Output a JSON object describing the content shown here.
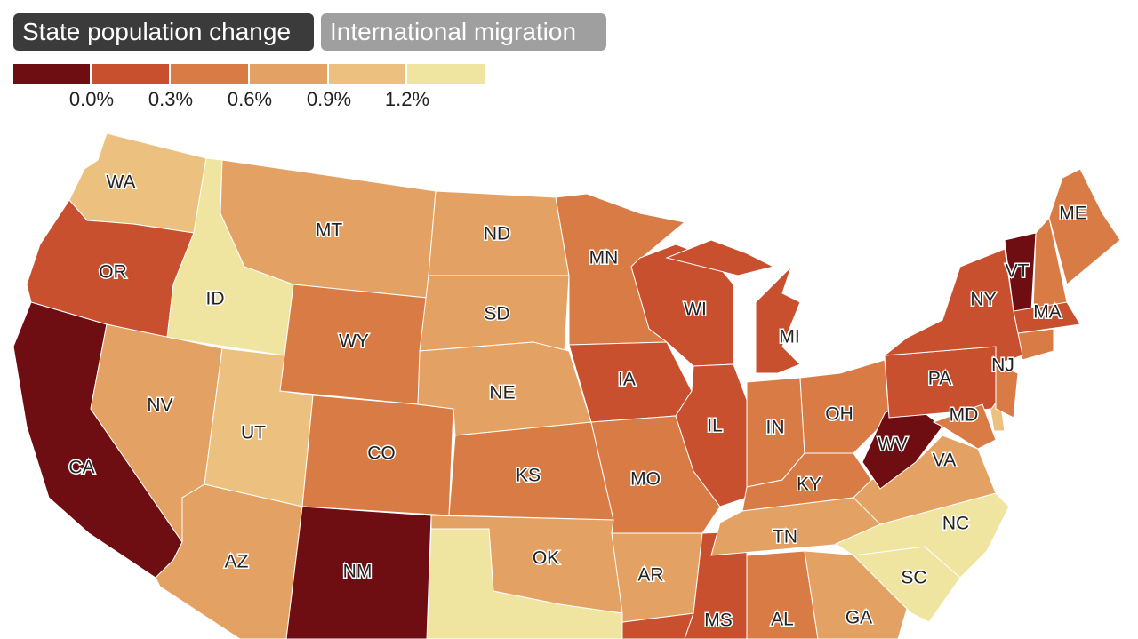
{
  "tabs": [
    {
      "label": "State population change"
    },
    {
      "label": "International migration"
    }
  ],
  "legend": {
    "colors": [
      "#6e0d12",
      "#c8502f",
      "#d97b45",
      "#e4a164",
      "#ecc17f",
      "#efe4a0"
    ],
    "labels": [
      "0.0%",
      "0.3%",
      "0.6%",
      "0.9%",
      "1.2%"
    ]
  },
  "states": [
    {
      "label": "WA",
      "color": "#ecc17f"
    },
    {
      "label": "OR",
      "color": "#c8502f"
    },
    {
      "label": "CA",
      "color": "#6e0d12"
    },
    {
      "label": "ID",
      "color": "#efe4a0"
    },
    {
      "label": "NV",
      "color": "#e4a164"
    },
    {
      "label": "UT",
      "color": "#ecc17f"
    },
    {
      "label": "AZ",
      "color": "#e4a164"
    },
    {
      "label": "MT",
      "color": "#e4a164"
    },
    {
      "label": "WY",
      "color": "#d97b45"
    },
    {
      "label": "CO",
      "color": "#d97b45"
    },
    {
      "label": "NM",
      "color": "#6e0d12"
    },
    {
      "label": "ND",
      "color": "#e4a164"
    },
    {
      "label": "SD",
      "color": "#e4a164"
    },
    {
      "label": "NE",
      "color": "#e4a164"
    },
    {
      "label": "KS",
      "color": "#d97b45"
    },
    {
      "label": "OK",
      "color": "#e4a164"
    },
    {
      "label": "MN",
      "color": "#d97b45"
    },
    {
      "label": "IA",
      "color": "#c8502f"
    },
    {
      "label": "MO",
      "color": "#d97b45"
    },
    {
      "label": "AR",
      "color": "#e4a164"
    },
    {
      "label": "WI",
      "color": "#c8502f"
    },
    {
      "label": "IL",
      "color": "#c8502f"
    },
    {
      "label": "MS",
      "color": "#c8502f"
    },
    {
      "label": "MI",
      "color": "#c8502f"
    },
    {
      "label": "IN",
      "color": "#d97b45"
    },
    {
      "label": "OH",
      "color": "#d97b45"
    },
    {
      "label": "KY",
      "color": "#d97b45"
    },
    {
      "label": "TN",
      "color": "#e4a164"
    },
    {
      "label": "AL",
      "color": "#d97b45"
    },
    {
      "label": "GA",
      "color": "#e4a164"
    },
    {
      "label": "SC",
      "color": "#efe4a0"
    },
    {
      "label": "NC",
      "color": "#efe4a0"
    },
    {
      "label": "VA",
      "color": "#e4a164"
    },
    {
      "label": "WV",
      "color": "#6e0d12"
    },
    {
      "label": "PA",
      "color": "#c8502f"
    },
    {
      "label": "NY",
      "color": "#c8502f"
    },
    {
      "label": "VT",
      "color": "#6e0d12"
    },
    {
      "label": "MA",
      "color": "#c8502f"
    },
    {
      "label": "NJ",
      "color": "#d97b45"
    },
    {
      "label": "MD",
      "color": "#d97b45"
    },
    {
      "label": "ME",
      "color": "#d97b45"
    }
  ],
  "unlabeled": [
    {
      "color": "#efe4a0"
    },
    {
      "color": "#c8502f"
    },
    {
      "color": "#d97b45"
    },
    {
      "color": "#d97b45"
    },
    {
      "color": "#ecc17f"
    }
  ]
}
